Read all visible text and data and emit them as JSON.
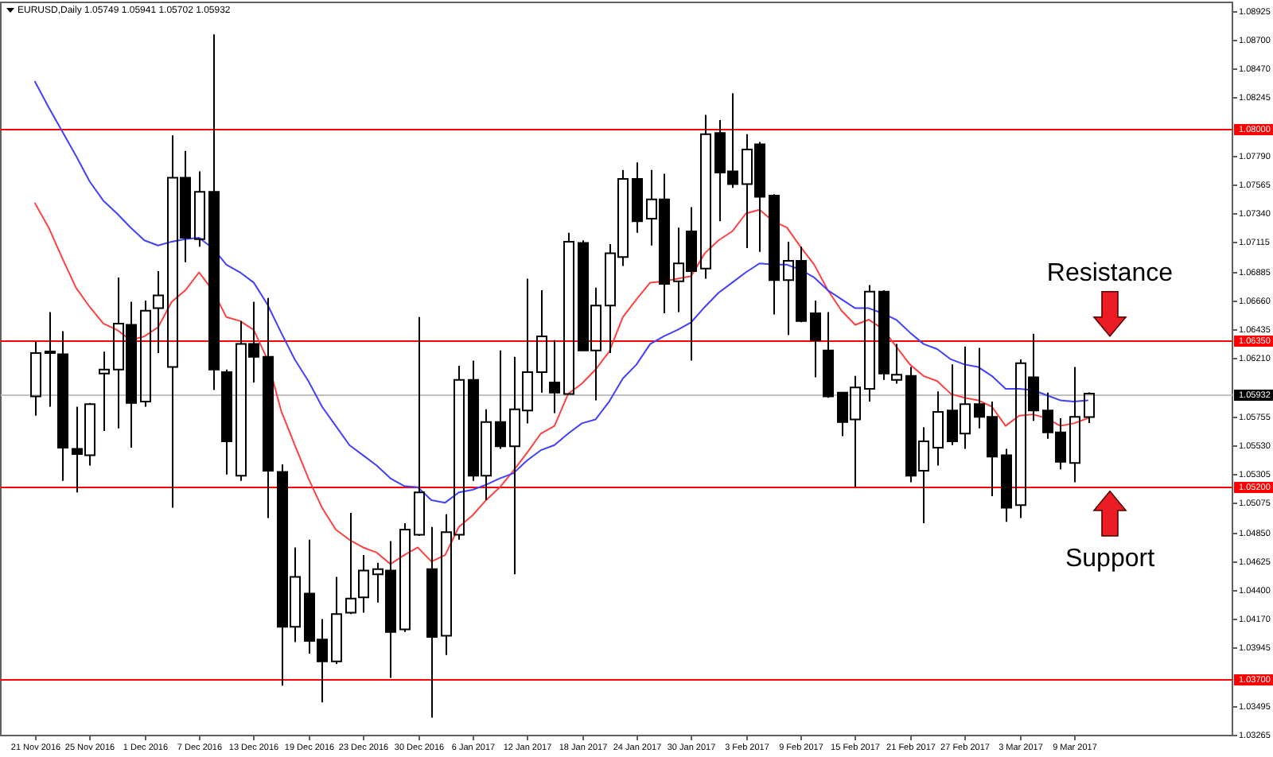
{
  "chart_data": {
    "type": "candlestick",
    "title": "EURUSD,Daily 1.05749 1.05941 1.05702 1.05932",
    "color": "#000000",
    "categories": [
      "21 Nov 2016",
      null,
      null,
      null,
      "25 Nov 2016",
      null,
      null,
      null,
      "1 Dec 2016",
      null,
      null,
      null,
      "7 Dec 2016",
      null,
      null,
      null,
      "13 Dec 2016",
      null,
      null,
      null,
      "19 Dec 2016",
      null,
      null,
      null,
      "23 Dec 2016",
      null,
      null,
      null,
      "30 Dec 2016",
      null,
      null,
      null,
      "6 Jan 2017",
      null,
      null,
      null,
      "12 Jan 2017",
      null,
      null,
      null,
      "18 Jan 2017",
      null,
      null,
      null,
      "24 Jan 2017",
      null,
      null,
      null,
      "30 Jan 2017",
      null,
      null,
      null,
      "3 Feb 2017",
      null,
      null,
      null,
      "9 Feb 2017",
      null,
      null,
      null,
      "15 Feb 2017",
      null,
      null,
      null,
      "21 Feb 2017",
      null,
      null,
      null,
      "27 Feb 2017",
      null,
      null,
      null,
      "3 Mar 2017",
      null,
      null,
      null,
      "9 Mar 2017",
      null
    ],
    "ohlc": [
      [
        1.0591,
        1.0634,
        1.0576,
        1.0625
      ],
      [
        1.0626,
        1.0657,
        1.0583,
        1.0625
      ],
      [
        1.0624,
        1.0642,
        1.0525,
        1.0551
      ],
      [
        1.055,
        1.0583,
        1.0516,
        1.0546
      ],
      [
        1.0545,
        1.0586,
        1.0537,
        1.0585
      ],
      [
        1.0609,
        1.0626,
        1.0564,
        1.0612
      ],
      [
        1.0612,
        1.0684,
        1.0566,
        1.0648
      ],
      [
        1.0647,
        1.0665,
        1.0551,
        1.0586
      ],
      [
        1.0587,
        1.0666,
        1.0583,
        1.0658
      ],
      [
        1.066,
        1.0689,
        1.0625,
        1.067
      ],
      [
        1.0614,
        1.0795,
        1.0504,
        1.0762
      ],
      [
        1.0762,
        1.0783,
        1.0696,
        1.0715
      ],
      [
        1.0714,
        1.0767,
        1.0708,
        1.0751
      ],
      [
        1.0751,
        1.0874,
        1.0596,
        1.0612
      ],
      [
        1.061,
        1.0612,
        1.053,
        1.0556
      ],
      [
        1.0529,
        1.065,
        1.0525,
        1.0632
      ],
      [
        1.0632,
        1.0665,
        1.0602,
        1.0622
      ],
      [
        1.0622,
        1.0668,
        1.0496,
        1.0533
      ],
      [
        1.0532,
        1.0538,
        1.0365,
        1.0411
      ],
      [
        1.0411,
        1.0473,
        1.0399,
        1.045
      ],
      [
        1.0437,
        1.0479,
        1.039,
        1.04
      ],
      [
        1.0401,
        1.0417,
        1.0352,
        1.0384
      ],
      [
        1.0384,
        1.045,
        1.0382,
        1.0421
      ],
      [
        1.0422,
        1.05,
        1.0421,
        1.0433
      ],
      [
        1.0434,
        1.0467,
        1.0422,
        1.0455
      ],
      [
        1.0452,
        1.0461,
        1.043,
        1.0456
      ],
      [
        1.0455,
        1.0478,
        1.0371,
        1.0407
      ],
      [
        1.0409,
        1.0492,
        1.0407,
        1.0487
      ],
      [
        1.0483,
        1.0653,
        1.0482,
        1.0516
      ],
      [
        1.0456,
        1.0489,
        1.034,
        1.0403
      ],
      [
        1.0404,
        1.0499,
        1.0389,
        1.0485
      ],
      [
        1.0483,
        1.0615,
        1.0479,
        1.0604
      ],
      [
        1.0604,
        1.0619,
        1.0525,
        1.0529
      ],
      [
        1.0529,
        1.0581,
        1.051,
        1.0571
      ],
      [
        1.0571,
        1.0627,
        1.055,
        1.0552
      ],
      [
        1.0552,
        1.0622,
        1.0452,
        1.0581
      ],
      [
        1.058,
        1.0683,
        1.057,
        1.061
      ],
      [
        1.061,
        1.0674,
        1.0594,
        1.0638
      ],
      [
        1.0602,
        1.0635,
        1.0578,
        1.0594
      ],
      [
        1.0593,
        1.0719,
        1.0593,
        1.0712
      ],
      [
        1.0711,
        1.0713,
        1.0627,
        1.0627
      ],
      [
        1.0627,
        1.0676,
        1.0588,
        1.0662
      ],
      [
        1.0662,
        1.071,
        1.0625,
        1.0703
      ],
      [
        1.07,
        1.0768,
        1.0693,
        1.0761
      ],
      [
        1.0761,
        1.0774,
        1.0719,
        1.0728
      ],
      [
        1.073,
        1.0768,
        1.0709,
        1.0745
      ],
      [
        1.0745,
        1.0765,
        1.0656,
        1.0679
      ],
      [
        1.0681,
        1.0723,
        1.0657,
        1.0695
      ],
      [
        1.072,
        1.0739,
        1.0619,
        1.0689
      ],
      [
        1.0691,
        1.0811,
        1.0683,
        1.0796
      ],
      [
        1.0797,
        1.0807,
        1.0728,
        1.0766
      ],
      [
        1.0767,
        1.0828,
        1.0754,
        1.0757
      ],
      [
        1.0757,
        1.0796,
        1.0707,
        1.0784
      ],
      [
        1.0788,
        1.079,
        1.0704,
        1.0747
      ],
      [
        1.0748,
        1.0749,
        1.0655,
        1.0682
      ],
      [
        1.0682,
        1.0712,
        1.0639,
        1.0697
      ],
      [
        1.0697,
        1.0708,
        1.0649,
        1.065
      ],
      [
        1.0656,
        1.0666,
        1.0606,
        1.0635
      ],
      [
        1.0627,
        1.0657,
        1.059,
        1.0591
      ],
      [
        1.0594,
        1.0594,
        1.056,
        1.0571
      ],
      [
        1.0573,
        1.0607,
        1.052,
        1.0598
      ],
      [
        1.0597,
        1.0678,
        1.0587,
        1.0673
      ],
      [
        1.0673,
        1.0674,
        1.0604,
        1.0609
      ],
      [
        1.0604,
        1.0632,
        1.0601,
        1.0608
      ],
      [
        1.0607,
        1.0614,
        1.0524,
        1.0529
      ],
      [
        1.0533,
        1.0567,
        1.0492,
        1.0556
      ],
      [
        1.0551,
        1.0595,
        1.0537,
        1.0579
      ],
      [
        1.058,
        1.0616,
        1.0553,
        1.0556
      ],
      [
        1.0562,
        1.063,
        1.055,
        1.0585
      ],
      [
        1.0585,
        1.0629,
        1.0566,
        1.0575
      ],
      [
        1.0575,
        1.0587,
        1.0513,
        1.0544
      ],
      [
        1.0545,
        1.055,
        1.0493,
        1.0504
      ],
      [
        1.0506,
        1.062,
        1.0496,
        1.0617
      ],
      [
        1.0606,
        1.064,
        1.0572,
        1.058
      ],
      [
        1.058,
        1.0594,
        1.0558,
        1.0563
      ],
      [
        1.0563,
        1.0574,
        1.0534,
        1.054
      ],
      [
        1.0539,
        1.0614,
        1.0524,
        1.0575
      ],
      [
        1.05749,
        1.05941,
        1.05702,
        1.05932
      ]
    ],
    "series": [
      {
        "type": "line",
        "color": "#ff4040",
        "values": [
          1.0742,
          1.0723,
          1.0699,
          1.0676,
          1.0661,
          1.0648,
          1.0643,
          1.0635,
          1.0638,
          1.0645,
          1.0665,
          1.0674,
          1.0688,
          1.0674,
          1.0653,
          1.065,
          1.0643,
          1.062,
          1.058,
          1.0553,
          1.0527,
          1.0504,
          1.0487,
          1.0479,
          1.0473,
          1.0469,
          1.046,
          1.0467,
          1.0473,
          1.0462,
          1.0467,
          1.0489,
          1.0498,
          1.051,
          1.052,
          1.0533,
          1.0547,
          1.0562,
          1.0568,
          1.0593,
          1.0601,
          1.0612,
          1.0626,
          1.0653,
          1.0667,
          1.068,
          1.0681,
          1.0683,
          1.0685,
          1.0703,
          1.0713,
          1.072,
          1.0734,
          1.0737,
          1.0728,
          1.0723,
          1.0708,
          1.0694,
          1.0674,
          1.0658,
          1.0647,
          1.0651,
          1.0644,
          1.063,
          1.0616,
          1.0607,
          1.0603,
          1.0593,
          1.059,
          1.0588,
          1.0583,
          1.0568,
          1.0576,
          1.0577,
          1.0574,
          1.0568,
          1.057,
          1.0574
        ]
      },
      {
        "type": "line",
        "color": "#4040ff",
        "values": [
          1.0837,
          1.0817,
          1.0798,
          1.0779,
          1.0759,
          1.0744,
          1.0734,
          1.0723,
          1.0713,
          1.0709,
          1.0712,
          1.0714,
          1.0715,
          1.0707,
          1.0694,
          1.0688,
          1.068,
          1.0663,
          1.0641,
          1.062,
          1.0603,
          1.0583,
          1.0568,
          1.0553,
          1.0545,
          1.0537,
          1.0527,
          1.0521,
          1.052,
          1.051,
          1.0508,
          1.0516,
          1.0518,
          1.0522,
          1.0527,
          1.0531,
          1.0541,
          1.0549,
          1.0553,
          1.0562,
          1.057,
          1.0573,
          1.0587,
          1.0605,
          1.0616,
          1.0632,
          1.0638,
          1.0643,
          1.0649,
          1.0661,
          1.0672,
          1.068,
          1.0688,
          1.0695,
          1.0694,
          1.0694,
          1.069,
          1.0684,
          1.0674,
          1.0667,
          1.066,
          1.066,
          1.0656,
          1.0651,
          1.0641,
          1.0632,
          1.0628,
          1.062,
          1.0616,
          1.0614,
          1.0607,
          1.0597,
          1.0597,
          1.0596,
          1.0592,
          1.0588,
          1.0587,
          1.0588
        ]
      }
    ],
    "ylim": [
      1.0326,
      1.0899
    ],
    "yticks": [
      1.08925,
      {
        "value": 1.087,
        "label": "1.08700"
      },
      {
        "value": 1.0847,
        "label": "1.08470"
      },
      1.08245,
      {
        "value": 1.0779,
        "label": "1.07790"
      },
      1.07565,
      {
        "value": 1.0734,
        "label": "1.07340"
      },
      1.07115,
      1.06885,
      {
        "value": 1.0666,
        "label": "1.06660"
      },
      1.06435,
      {
        "value": 1.0621,
        "label": "1.06210"
      },
      1.05755,
      {
        "value": 1.0553,
        "label": "1.05530"
      },
      1.05305,
      1.05075,
      {
        "value": 1.0485,
        "label": "1.04850"
      },
      1.04625,
      {
        "value": 1.044,
        "label": "1.04400"
      },
      {
        "value": 1.0417,
        "label": "1.04170"
      },
      1.03945,
      1.03495,
      1.03265
    ],
    "ref_lines": [
      {
        "axis": "y",
        "value": 1.08,
        "label": "1.08000",
        "color": "#ff0000"
      },
      {
        "axis": "y",
        "value": 1.0635,
        "label": "1.06350",
        "color": "#ff0000"
      },
      {
        "axis": "y",
        "value": 1.052,
        "label": "1.05200",
        "color": "#ff0000"
      },
      {
        "axis": "y",
        "value": 1.037,
        "label": "1.03700",
        "color": "#ff0000"
      },
      {
        "axis": "y",
        "value": 1.05932,
        "label": "1.05932",
        "color": "#c0c0c0"
      }
    ],
    "annotations": [
      {
        "text": "Resistance",
        "y": 1.0635
      },
      {
        "text": "Support",
        "y": 1.052
      }
    ]
  }
}
